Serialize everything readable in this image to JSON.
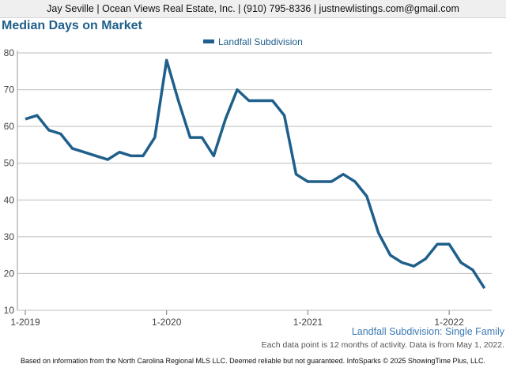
{
  "header": {
    "text": "Jay Seville | Ocean Views Real Estate, Inc. | (910) 795-8336 | justnewlistings.com@gmail.com"
  },
  "footer": {
    "subtitle": "Landfall Subdivision: Single Family",
    "note": "Each data point is 12 months of activity. Data is from May 1, 2022.",
    "disclaimer": "Based on information from the North Carolina Regional MLS LLC. Deemed reliable but not guaranteed. InfoSparks © 2025 ShowingTime Plus, LLC."
  },
  "colors": {
    "line": "#1f5f8b",
    "title": "#1f5f8b",
    "grid": "#bdbdbd"
  },
  "chart_data": {
    "type": "line",
    "title": "Median Days on Market",
    "xlabel": "",
    "ylabel": "",
    "ylim": [
      10,
      80
    ],
    "yticks": [
      10,
      20,
      30,
      40,
      50,
      60,
      70,
      80
    ],
    "xticks": [
      "1-2019",
      "1-2020",
      "1-2021",
      "1-2022"
    ],
    "grid": true,
    "legend_position": "top-center",
    "x": [
      "1-2019",
      "2-2019",
      "3-2019",
      "4-2019",
      "5-2019",
      "6-2019",
      "7-2019",
      "8-2019",
      "9-2019",
      "10-2019",
      "11-2019",
      "12-2019",
      "1-2020",
      "2-2020",
      "3-2020",
      "4-2020",
      "5-2020",
      "6-2020",
      "7-2020",
      "8-2020",
      "9-2020",
      "10-2020",
      "11-2020",
      "12-2020",
      "1-2021",
      "2-2021",
      "3-2021",
      "4-2021",
      "5-2021",
      "6-2021",
      "7-2021",
      "8-2021",
      "9-2021",
      "10-2021",
      "11-2021",
      "12-2021",
      "1-2022",
      "2-2022",
      "3-2022",
      "4-2022"
    ],
    "series": [
      {
        "name": "Landfall Subdivision",
        "values": [
          62,
          63,
          59,
          58,
          54,
          53,
          52,
          51,
          53,
          52,
          52,
          57,
          78,
          67,
          57,
          57,
          52,
          62,
          70,
          67,
          67,
          67,
          63,
          47,
          45,
          45,
          45,
          47,
          45,
          41,
          31,
          25,
          23,
          22,
          24,
          28,
          28,
          23,
          21,
          16
        ]
      }
    ]
  }
}
